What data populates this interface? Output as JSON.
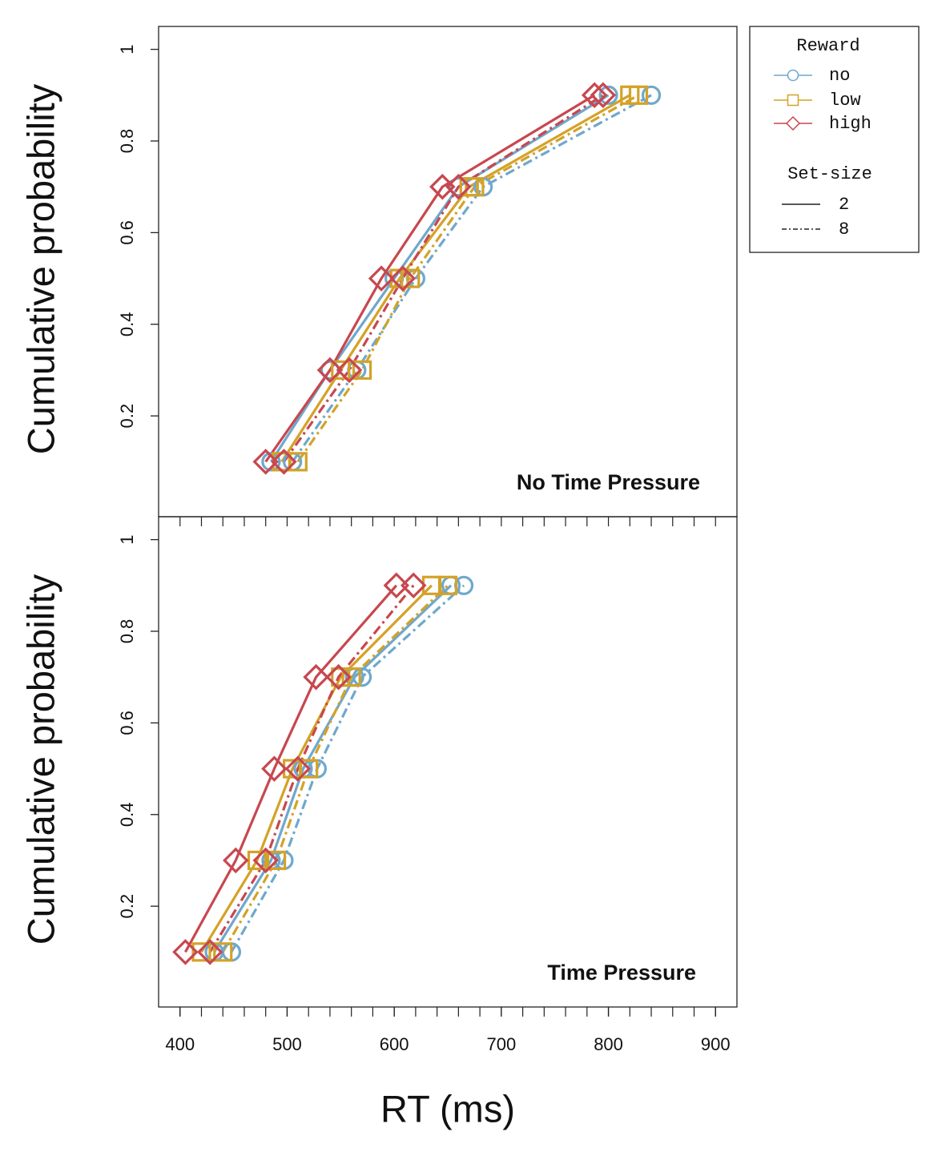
{
  "chart_data": {
    "type": "line",
    "xlabel": "RT (ms)",
    "ylabel": "Cumulative probability",
    "xlim": [
      380,
      920
    ],
    "ylim": [
      -0.02,
      1.05
    ],
    "x_ticks": [
      400,
      500,
      600,
      700,
      800,
      900
    ],
    "y_ticks": [
      0.2,
      0.4,
      0.6,
      0.8,
      1
    ],
    "y_tick_labels": [
      "0.2",
      "0.4",
      "0.6",
      "0.8",
      "1"
    ],
    "quantiles": [
      0.1,
      0.3,
      0.5,
      0.7,
      0.9
    ],
    "colors": {
      "no": "#6fa8cc",
      "low": "#d4a227",
      "high": "#c8474f"
    },
    "legend": {
      "reward_title": "Reward",
      "reward_items": [
        {
          "key": "no",
          "label": "no",
          "marker": "circle"
        },
        {
          "key": "low",
          "label": "low",
          "marker": "square"
        },
        {
          "key": "high",
          "label": "high",
          "marker": "diamond"
        }
      ],
      "setsize_title": "Set-size",
      "setsize_items": [
        {
          "label": "2",
          "line": "solid"
        },
        {
          "label": "8",
          "line": "dashdot"
        }
      ]
    },
    "panels": [
      {
        "title": "No Time Pressure",
        "series": [
          {
            "reward": "no",
            "set_size": "2",
            "x": [
              485,
              540,
              600,
              660,
              800
            ]
          },
          {
            "reward": "no",
            "set_size": "8",
            "x": [
              505,
              565,
              620,
              683,
              840
            ]
          },
          {
            "reward": "low",
            "set_size": "2",
            "x": [
              495,
              550,
              605,
              670,
              820
            ]
          },
          {
            "reward": "low",
            "set_size": "8",
            "x": [
              510,
              570,
              615,
              675,
              828
            ]
          },
          {
            "reward": "high",
            "set_size": "2",
            "x": [
              480,
              540,
              588,
              645,
              787
            ]
          },
          {
            "reward": "high",
            "set_size": "8",
            "x": [
              497,
              558,
              608,
              660,
              795
            ]
          }
        ]
      },
      {
        "title": "Time Pressure",
        "series": [
          {
            "reward": "no",
            "set_size": "2",
            "x": [
              432,
              485,
              515,
              563,
              653
            ]
          },
          {
            "reward": "no",
            "set_size": "8",
            "x": [
              448,
              497,
              528,
              570,
              665
            ]
          },
          {
            "reward": "low",
            "set_size": "2",
            "x": [
              420,
              472,
              505,
              550,
              635
            ]
          },
          {
            "reward": "low",
            "set_size": "8",
            "x": [
              440,
              490,
              520,
              560,
              650
            ]
          },
          {
            "reward": "high",
            "set_size": "2",
            "x": [
              405,
              452,
              488,
              527,
              602
            ]
          },
          {
            "reward": "high",
            "set_size": "8",
            "x": [
              428,
              480,
              510,
              548,
              618
            ]
          }
        ]
      }
    ]
  }
}
